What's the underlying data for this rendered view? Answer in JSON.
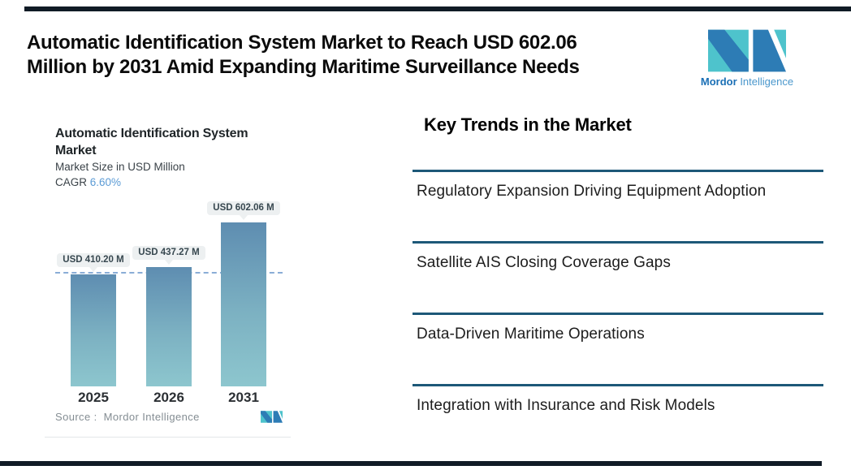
{
  "header": {
    "title_line1": "Automatic Identification System Market to Reach USD 602.06",
    "title_line2": "Million by 2031 Amid Expanding Maritime Surveillance Needs"
  },
  "brand": {
    "name_bold": "Mordor",
    "name_light": "Intelligence",
    "logo_teal": "#4ec3cc",
    "logo_blue": "#2d7cb5"
  },
  "chart_data": {
    "type": "bar",
    "title": "Automatic Identification System Market",
    "title_line1": "Automatic Identification System",
    "title_line2": "Market",
    "subtitle": "Market Size in USD Million",
    "cagr_label": "CAGR",
    "cagr_value": "6.60%",
    "categories": [
      "2025",
      "2026",
      "2031"
    ],
    "values": [
      410.2,
      437.27,
      602.06
    ],
    "bar_labels": [
      "USD 410.20 M",
      "USD 437.27 M",
      "USD 602.06 M"
    ],
    "unit": "USD Million",
    "ylim": [
      0,
      602.06
    ],
    "reference_line": 410.2,
    "grid": false,
    "legend": false,
    "source": "Source :  Mordor Intelligence"
  },
  "key_trends": {
    "heading": "Key Trends in the Market",
    "items": [
      "Regulatory Expansion Driving Equipment Adoption",
      "Satellite AIS Closing Coverage Gaps",
      "Data-Driven Maritime Operations",
      "Integration with Insurance and Risk Models"
    ]
  },
  "colors": {
    "accent_bar": "#101b26",
    "trend_rule": "#1d5878",
    "cagr_value": "#5b9bd5",
    "bar_gradient_top": "#5e8db1",
    "bar_gradient_bottom": "#8dc6ce",
    "dashed_line": "#8aadd6",
    "callout_bg": "#edf0f1"
  }
}
